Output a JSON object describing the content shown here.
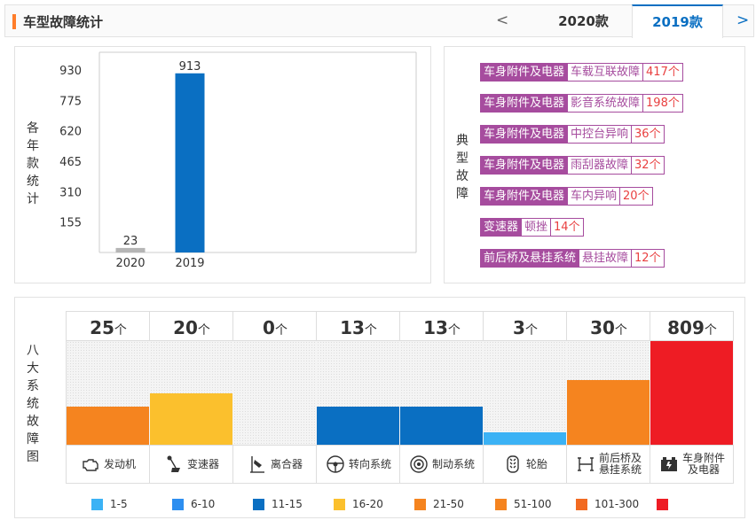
{
  "header": {
    "title": "车型故障统计",
    "prev_label": "<",
    "next_label": ">",
    "tabs": [
      "2020款",
      "2019款"
    ],
    "active_tab": "2019款"
  },
  "year_chart": {
    "vertical_label": "各年款统计",
    "chart_data": {
      "type": "bar",
      "categories": [
        "2020",
        "2019"
      ],
      "values": [
        23,
        913
      ],
      "ylim": [
        0,
        930
      ],
      "yticks": [
        155,
        310,
        465,
        620,
        775,
        930
      ],
      "colors": [
        "#b5b5b5",
        "#0a6fc2"
      ]
    }
  },
  "typical_faults": {
    "vertical_label": "典型故障",
    "items": [
      {
        "category": "车身附件及电器",
        "name": "车载互联故障",
        "count": "417个"
      },
      {
        "category": "车身附件及电器",
        "name": "影音系统故障",
        "count": "198个"
      },
      {
        "category": "车身附件及电器",
        "name": "中控台异响",
        "count": "36个"
      },
      {
        "category": "车身附件及电器",
        "name": "雨刮器故障",
        "count": "32个"
      },
      {
        "category": "车身附件及电器",
        "name": "车内异响",
        "count": "20个"
      },
      {
        "category": "变速器",
        "name": "顿挫",
        "count": "14个"
      },
      {
        "category": "前后桥及悬挂系统",
        "name": "悬挂故障",
        "count": "12个"
      }
    ]
  },
  "systems": {
    "vertical_label": "八大系统故障图",
    "unit": "个",
    "items": [
      {
        "label": "发动机",
        "count": "25",
        "value": 25,
        "level": 0.37,
        "color": "#f5841f",
        "icon": "engine-icon"
      },
      {
        "label": "变速器",
        "count": "20",
        "value": 20,
        "level": 0.5,
        "color": "#fbc02d",
        "icon": "gear-shift-icon"
      },
      {
        "label": "离合器",
        "count": "0",
        "value": 0,
        "level": 0,
        "color": "#f4f4f4",
        "icon": "clutch-pedal-icon"
      },
      {
        "label": "转向系统",
        "count": "13",
        "value": 13,
        "level": 0.37,
        "color": "#0a6fc2",
        "icon": "steering-wheel-icon"
      },
      {
        "label": "制动系统",
        "count": "13",
        "value": 13,
        "level": 0.37,
        "color": "#0a6fc2",
        "icon": "brake-disc-icon"
      },
      {
        "label": "轮胎",
        "count": "3",
        "value": 3,
        "level": 0.12,
        "color": "#3bb2f5",
        "icon": "tire-icon"
      },
      {
        "label": "前后桥及悬挂系统",
        "label_lines": [
          "前后桥及",
          "悬挂系统"
        ],
        "count": "30",
        "value": 30,
        "level": 0.62,
        "color": "#f5841f",
        "icon": "suspension-icon"
      },
      {
        "label": "车身附件及电器",
        "label_lines": [
          "车身附件",
          "及电器"
        ],
        "count": "809",
        "value": 809,
        "level": 1.0,
        "color": "#ee1c24",
        "icon": "battery-icon"
      }
    ]
  },
  "legend": [
    {
      "label": "1-5",
      "color": "#3bb2f5"
    },
    {
      "label": "6-10",
      "color": "#2d8ef0"
    },
    {
      "label": "11-15",
      "color": "#0a6fc2"
    },
    {
      "label": "16-20",
      "color": "#fbc02d"
    },
    {
      "label": "21-50",
      "color": "#f5841f"
    },
    {
      "label": "51-100",
      "color": "#f5841f"
    },
    {
      "label": "101-300",
      "color": "#f26a21"
    },
    {
      "label": "",
      "color": "#ee1c24"
    }
  ]
}
